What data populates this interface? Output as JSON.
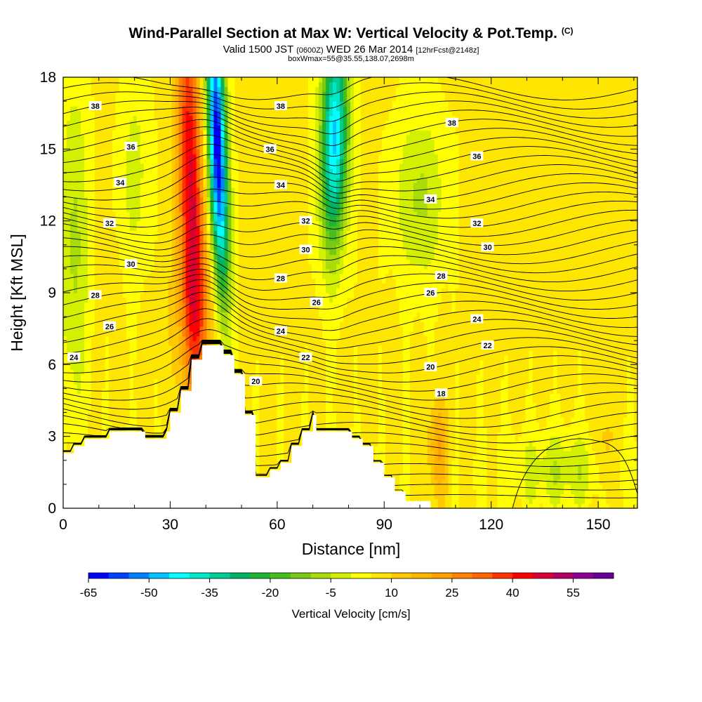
{
  "title": "Wind-Parallel Section at Max W: Vertical Velocity & Pot.Temp.",
  "title_mark": "(C)",
  "subtitle_main": "Valid 1500 JST",
  "subtitle_small": "(0600Z)",
  "subtitle_date": "WED 26 Mar 2014",
  "subtitle_fcst": "[12hrFcst@2148z]",
  "subtitle2": "boxWmax=55@35.55,138.07,2698m",
  "colorbar": {
    "title": "Vertical Velocity [cm/s]",
    "tick_labels": [
      "-65",
      "-50",
      "-35",
      "-20",
      "-5",
      "10",
      "25",
      "40",
      "55"
    ],
    "levels": [
      -65,
      -60,
      -55,
      -50,
      -45,
      -40,
      -35,
      -30,
      -25,
      -20,
      -15,
      -10,
      -5,
      0,
      5,
      10,
      15,
      20,
      25,
      30,
      35,
      40,
      45,
      50,
      55,
      60
    ],
    "colors": [
      "#0000ff",
      "#0041ff",
      "#0082ff",
      "#00c3ff",
      "#00ffff",
      "#00e6c8",
      "#00cd96",
      "#00b464",
      "#1eb432",
      "#46be1e",
      "#78c814",
      "#aadc0a",
      "#d2f000",
      "#ffff00",
      "#ffe600",
      "#ffc800",
      "#ffb400",
      "#ffa000",
      "#ff8200",
      "#ff6400",
      "#ff3200",
      "#ff0000",
      "#dc0032",
      "#b40064",
      "#8c0096",
      "#640096"
    ]
  },
  "chart_data": {
    "type": "heatmap",
    "title": "Wind-Parallel Section at Max W: Vertical Velocity & Pot.Temp.",
    "xlabel": "Distance [nm]",
    "ylabel": "Height [Kft MSL]",
    "xlim": [
      0,
      161
    ],
    "ylim": [
      0,
      18
    ],
    "x_ticks": [
      0,
      30,
      60,
      90,
      120,
      150
    ],
    "y_ticks": [
      0,
      3,
      6,
      9,
      12,
      15,
      18
    ],
    "x_tick_labels": [
      "0",
      "30",
      "60",
      "90",
      "120",
      "150"
    ],
    "y_tick_labels": [
      "0",
      "3",
      "6",
      "9",
      "12",
      "15",
      "18"
    ],
    "field": "vertical velocity (cm/s)",
    "contours": "potential temperature",
    "features": [
      {
        "kind": "updraft",
        "x": 36,
        "top": 18,
        "bottom": 6.5,
        "w_max": 55
      },
      {
        "kind": "downdraft",
        "x": 43,
        "top": 18,
        "bottom": 7,
        "w_min": -65
      },
      {
        "kind": "downdraft",
        "x": 76,
        "top": 18,
        "bottom": 10.5,
        "w_min": -40
      },
      {
        "kind": "weak sinking",
        "x": 100,
        "top": 13,
        "bottom": 12,
        "w_min": -10
      },
      {
        "kind": "weak sinking",
        "x": 140,
        "top": 3,
        "bottom": 0.5,
        "w_min": -10
      }
    ],
    "terrain": {
      "x": [
        0,
        3,
        3,
        6,
        6,
        13,
        13,
        23,
        23,
        29,
        29,
        30,
        30,
        33,
        33,
        36,
        36,
        39,
        39,
        45,
        45,
        48,
        48,
        51,
        51,
        54,
        54,
        58,
        58,
        61,
        61,
        64,
        64,
        67,
        67,
        70,
        70,
        71,
        71,
        81,
        81,
        84,
        84,
        87,
        87,
        90,
        90,
        93,
        93,
        96,
        96,
        103,
        103,
        161
      ],
      "y": [
        2.3,
        2.3,
        2.6,
        2.6,
        2.9,
        2.9,
        3.2,
        3.2,
        2.9,
        2.9,
        3.2,
        3.2,
        4.0,
        4.0,
        4.9,
        4.9,
        6.2,
        6.2,
        6.8,
        6.8,
        6.4,
        6.4,
        5.6,
        5.6,
        3.9,
        3.9,
        1.3,
        1.3,
        1.6,
        1.6,
        1.9,
        1.9,
        2.6,
        2.6,
        3.2,
        3.2,
        3.9,
        3.9,
        3.2,
        3.2,
        2.9,
        2.9,
        2.6,
        2.6,
        1.9,
        1.9,
        1.3,
        1.3,
        0.7,
        0.7,
        0.3,
        0.3,
        0.0,
        0.0
      ]
    },
    "contour_labels": [
      {
        "text": "38",
        "x": 9,
        "y": 16.8
      },
      {
        "text": "36",
        "x": 19,
        "y": 15.1
      },
      {
        "text": "34",
        "x": 16,
        "y": 13.6
      },
      {
        "text": "32",
        "x": 13,
        "y": 11.9
      },
      {
        "text": "30",
        "x": 19,
        "y": 10.2
      },
      {
        "text": "28",
        "x": 9,
        "y": 8.9
      },
      {
        "text": "26",
        "x": 13,
        "y": 7.6
      },
      {
        "text": "24",
        "x": 3,
        "y": 6.3
      },
      {
        "text": "38",
        "x": 61,
        "y": 16.8
      },
      {
        "text": "36",
        "x": 58,
        "y": 15.0
      },
      {
        "text": "34",
        "x": 61,
        "y": 13.5
      },
      {
        "text": "32",
        "x": 68,
        "y": 12.0
      },
      {
        "text": "30",
        "x": 68,
        "y": 10.8
      },
      {
        "text": "28",
        "x": 61,
        "y": 9.6
      },
      {
        "text": "26",
        "x": 71,
        "y": 8.6
      },
      {
        "text": "24",
        "x": 61,
        "y": 7.4
      },
      {
        "text": "22",
        "x": 68,
        "y": 6.3
      },
      {
        "text": "20",
        "x": 54,
        "y": 5.3
      },
      {
        "text": "38",
        "x": 109,
        "y": 16.1
      },
      {
        "text": "36",
        "x": 116,
        "y": 14.7
      },
      {
        "text": "34",
        "x": 103,
        "y": 12.9
      },
      {
        "text": "32",
        "x": 116,
        "y": 11.9
      },
      {
        "text": "30",
        "x": 119,
        "y": 10.9
      },
      {
        "text": "28",
        "x": 106,
        "y": 9.7
      },
      {
        "text": "26",
        "x": 103,
        "y": 9.0
      },
      {
        "text": "24",
        "x": 116,
        "y": 7.9
      },
      {
        "text": "22",
        "x": 119,
        "y": 6.8
      },
      {
        "text": "20",
        "x": 103,
        "y": 5.9
      },
      {
        "text": "18",
        "x": 106,
        "y": 4.8
      }
    ]
  }
}
